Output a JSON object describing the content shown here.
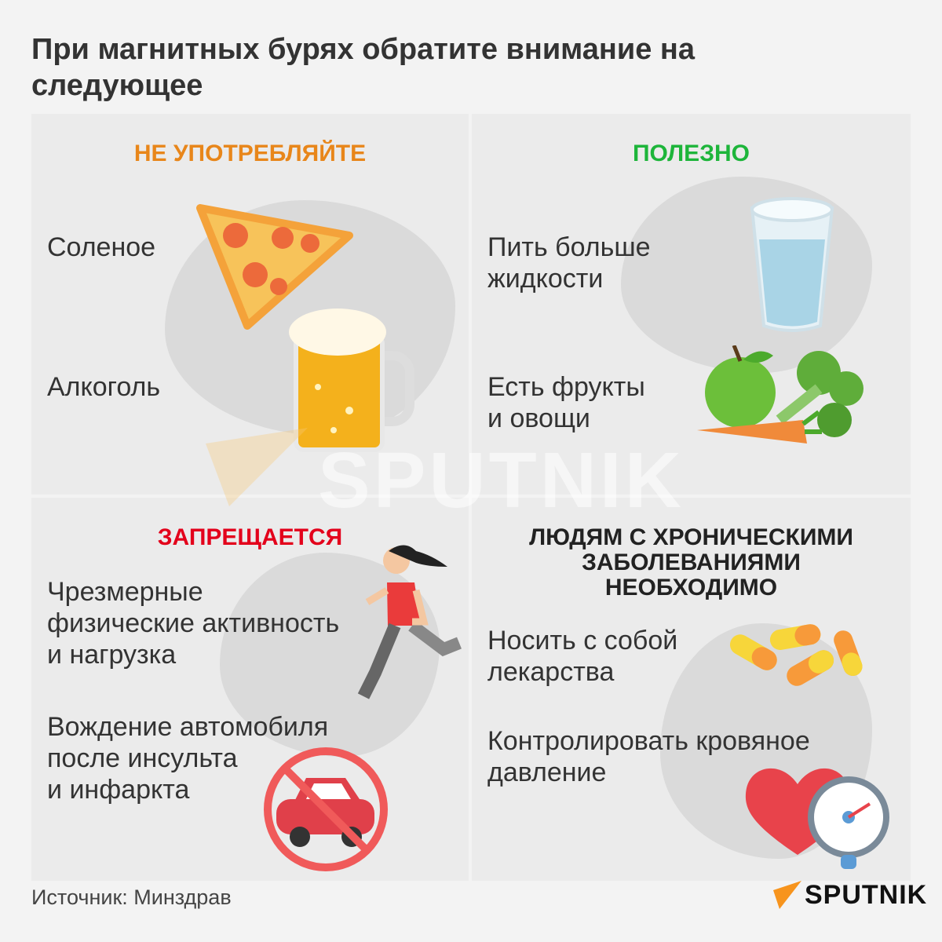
{
  "title": "При магнитных бурях обратите внимание на следующее",
  "panels": [
    {
      "heading": "НЕ УПОТРЕБЛЯЙТЕ",
      "color": "#e8861a",
      "items": [
        "Соленое",
        "Алкоголь"
      ]
    },
    {
      "heading": "ПОЛЕЗНО",
      "color": "#1db53a",
      "items": [
        "Пить больше\nжидкости",
        "Есть фрукты\nи овощи"
      ]
    },
    {
      "heading": "ЗАПРЕЩАЕТСЯ",
      "color": "#e3001b",
      "items": [
        "Чрезмерные\nфизические активность\nи нагрузка",
        "Вождение автомобиля\nпосле инсульта\nи инфаркта"
      ]
    },
    {
      "heading": "ЛЮДЯМ С ХРОНИЧЕСКИМИ\nЗАБОЛЕВАНИЯМИ\nНЕОБХОДИМО",
      "color": "#222222",
      "items": [
        "Носить с собой\nлекарства",
        "Контролировать кровяное\nдавление"
      ]
    }
  ],
  "watermark": "SPUTNIK",
  "source": "Источник: Минздрав",
  "logo": {
    "text": "SPUTNIK",
    "accent": "#f7941d"
  },
  "icons": [
    "pizza-icon",
    "beer-icon",
    "water-glass-icon",
    "vegetables-icon",
    "runner-icon",
    "no-car-icon",
    "pills-icon",
    "heart-pressure-icon"
  ]
}
